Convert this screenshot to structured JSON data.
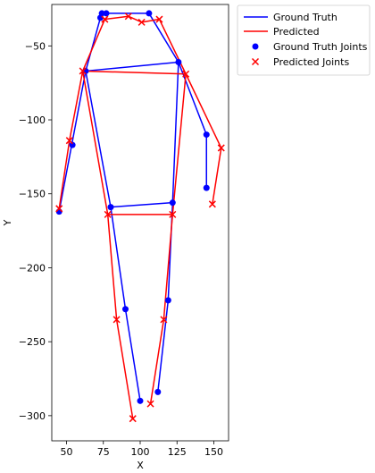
{
  "chart_data": {
    "type": "line",
    "title": "",
    "xlabel": "X",
    "ylabel": "Y",
    "xlim": [
      40,
      160
    ],
    "ylim": [
      -317,
      -22
    ],
    "xticks": [
      50,
      75,
      100,
      125,
      150
    ],
    "yticks": [
      -50,
      -100,
      -150,
      -200,
      -250,
      -300
    ],
    "grid": false,
    "legend_position": "outside top-right",
    "legend": [
      "Ground Truth",
      "Predicted",
      "Ground Truth Joints",
      "Predicted Joints"
    ],
    "colors": {
      "ground_truth": "#0000ff",
      "predicted": "#ff0000"
    },
    "ground_truth_joints": [
      {
        "x": 74,
        "y": -28
      },
      {
        "x": 77,
        "y": -28
      },
      {
        "x": 106,
        "y": -28
      },
      {
        "x": 73,
        "y": -31
      },
      {
        "x": 126,
        "y": -61
      },
      {
        "x": 63,
        "y": -67
      },
      {
        "x": 145,
        "y": -110
      },
      {
        "x": 54,
        "y": -117
      },
      {
        "x": 145,
        "y": -146
      },
      {
        "x": 122,
        "y": -156
      },
      {
        "x": 80,
        "y": -159
      },
      {
        "x": 45,
        "y": -162
      },
      {
        "x": 119,
        "y": -222
      },
      {
        "x": 90,
        "y": -228
      },
      {
        "x": 112,
        "y": -284
      },
      {
        "x": 100,
        "y": -290
      }
    ],
    "ground_truth_segments": [
      [
        [
          73,
          -31
        ],
        [
          74,
          -28
        ]
      ],
      [
        [
          74,
          -28
        ],
        [
          106,
          -28
        ]
      ],
      [
        [
          106,
          -28
        ],
        [
          126,
          -61
        ]
      ],
      [
        [
          73,
          -31
        ],
        [
          63,
          -67
        ]
      ],
      [
        [
          63,
          -67
        ],
        [
          126,
          -61
        ]
      ],
      [
        [
          63,
          -67
        ],
        [
          45,
          -162
        ]
      ],
      [
        [
          63,
          -67
        ],
        [
          80,
          -159
        ]
      ],
      [
        [
          126,
          -61
        ],
        [
          122,
          -156
        ]
      ],
      [
        [
          80,
          -159
        ],
        [
          122,
          -156
        ]
      ],
      [
        [
          126,
          -61
        ],
        [
          145,
          -110
        ]
      ],
      [
        [
          145,
          -110
        ],
        [
          145,
          -146
        ]
      ],
      [
        [
          80,
          -159
        ],
        [
          90,
          -228
        ]
      ],
      [
        [
          90,
          -228
        ],
        [
          100,
          -290
        ]
      ],
      [
        [
          122,
          -156
        ],
        [
          119,
          -222
        ]
      ],
      [
        [
          119,
          -222
        ],
        [
          112,
          -284
        ]
      ]
    ],
    "predicted_joints": [
      {
        "x": 76,
        "y": -32
      },
      {
        "x": 92,
        "y": -30
      },
      {
        "x": 101,
        "y": -34
      },
      {
        "x": 113,
        "y": -32
      },
      {
        "x": 131,
        "y": -69
      },
      {
        "x": 61,
        "y": -67
      },
      {
        "x": 52,
        "y": -114
      },
      {
        "x": 155,
        "y": -119
      },
      {
        "x": 149,
        "y": -157
      },
      {
        "x": 45,
        "y": -160
      },
      {
        "x": 78,
        "y": -164
      },
      {
        "x": 122,
        "y": -164
      },
      {
        "x": 116,
        "y": -235
      },
      {
        "x": 84,
        "y": -235
      },
      {
        "x": 107,
        "y": -292
      },
      {
        "x": 95,
        "y": -302
      }
    ],
    "predicted_segments": [
      [
        [
          76,
          -32
        ],
        [
          92,
          -30
        ]
      ],
      [
        [
          92,
          -30
        ],
        [
          101,
          -34
        ]
      ],
      [
        [
          101,
          -34
        ],
        [
          113,
          -32
        ]
      ],
      [
        [
          113,
          -32
        ],
        [
          131,
          -69
        ]
      ],
      [
        [
          76,
          -32
        ],
        [
          61,
          -67
        ]
      ],
      [
        [
          61,
          -67
        ],
        [
          131,
          -69
        ]
      ],
      [
        [
          61,
          -67
        ],
        [
          52,
          -114
        ]
      ],
      [
        [
          52,
          -114
        ],
        [
          45,
          -160
        ]
      ],
      [
        [
          61,
          -67
        ],
        [
          78,
          -164
        ]
      ],
      [
        [
          78,
          -164
        ],
        [
          122,
          -164
        ]
      ],
      [
        [
          131,
          -69
        ],
        [
          122,
          -164
        ]
      ],
      [
        [
          131,
          -69
        ],
        [
          155,
          -119
        ]
      ],
      [
        [
          155,
          -119
        ],
        [
          149,
          -157
        ]
      ],
      [
        [
          78,
          -164
        ],
        [
          84,
          -235
        ]
      ],
      [
        [
          84,
          -235
        ],
        [
          95,
          -302
        ]
      ],
      [
        [
          122,
          -164
        ],
        [
          116,
          -235
        ]
      ],
      [
        [
          116,
          -235
        ],
        [
          107,
          -292
        ]
      ]
    ]
  }
}
